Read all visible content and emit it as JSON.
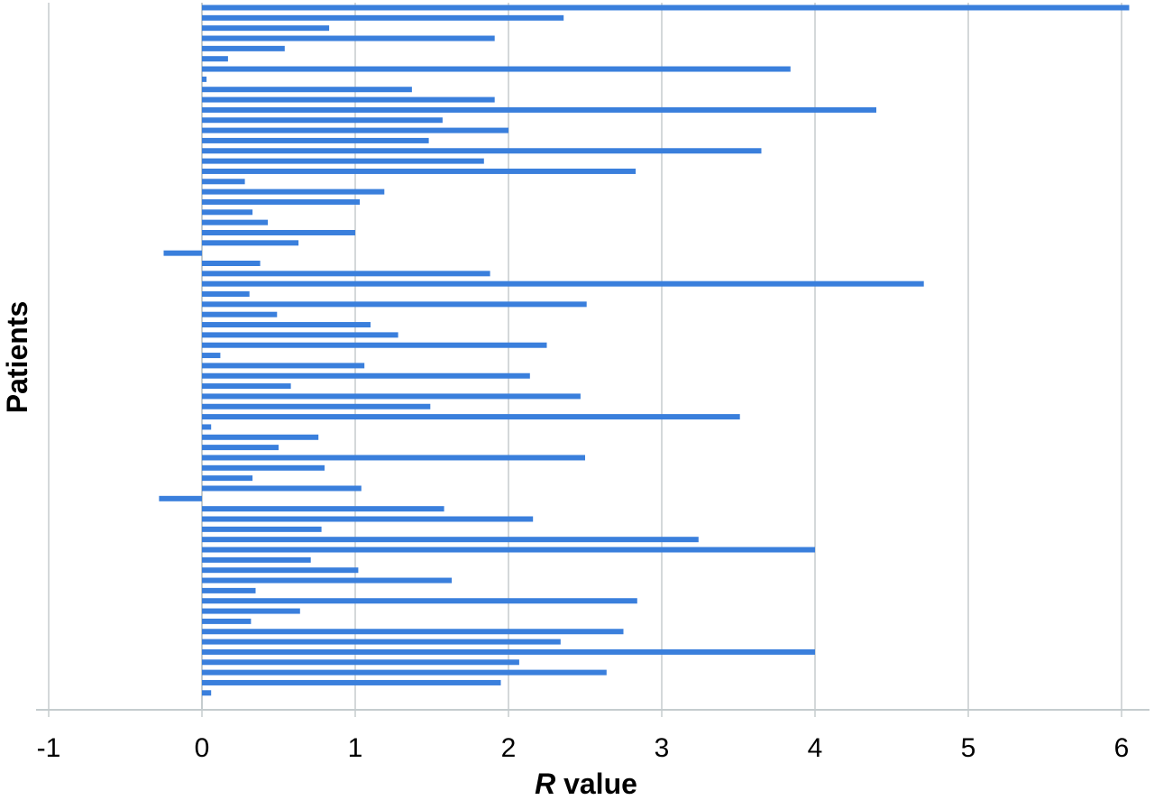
{
  "chart_data": {
    "type": "bar",
    "orientation": "horizontal",
    "xlabel_italic": "R",
    "xlabel_rest": " value",
    "ylabel": "Patients",
    "xlim": [
      -1,
      6
    ],
    "xticks": [
      -1,
      0,
      1,
      2,
      3,
      4,
      5,
      6
    ],
    "grid": "vertical",
    "legend": "none",
    "bar_color": "#3a7fdc",
    "grid_color": "#c5ccce",
    "values": [
      6.05,
      2.36,
      0.83,
      1.91,
      0.54,
      0.17,
      3.84,
      0.03,
      1.37,
      1.91,
      4.4,
      1.57,
      2.0,
      1.48,
      3.65,
      1.84,
      2.83,
      0.28,
      1.19,
      1.03,
      0.33,
      0.43,
      1.0,
      0.63,
      -0.25,
      0.38,
      1.88,
      4.71,
      0.31,
      2.51,
      0.49,
      1.1,
      1.28,
      2.25,
      0.12,
      1.06,
      2.14,
      0.58,
      2.47,
      1.49,
      3.51,
      0.06,
      0.76,
      0.5,
      2.5,
      0.8,
      0.33,
      1.04,
      -0.28,
      1.58,
      2.16,
      0.78,
      3.24,
      4.0,
      0.71,
      1.02,
      1.63,
      0.35,
      2.84,
      0.64,
      0.32,
      2.75,
      2.34,
      4.0,
      2.07,
      2.64,
      1.95,
      0.06
    ]
  }
}
